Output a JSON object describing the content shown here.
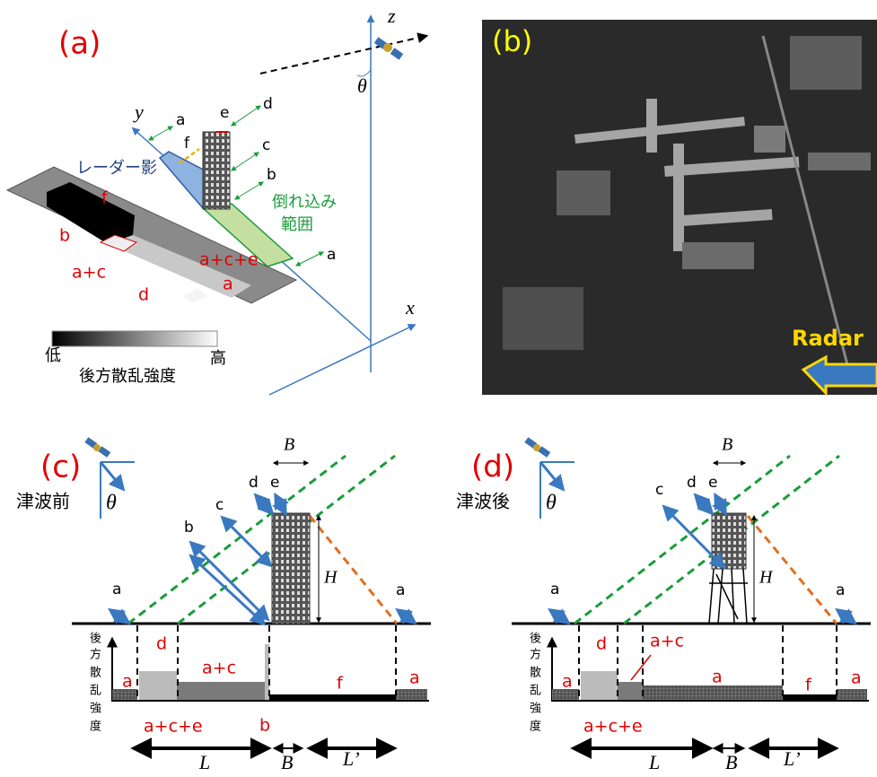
{
  "panel_a": {
    "label": "(a)",
    "axis_x": "x",
    "axis_y": "y",
    "axis_z": "z",
    "theta": "θ",
    "shadow_label": "レーダー影",
    "layover_label_1": "倒れ込み",
    "layover_label_2": "範囲",
    "paths": [
      "a",
      "e",
      "d",
      "f",
      "c",
      "b",
      "a"
    ],
    "image_labels": [
      "f",
      "b",
      "a+c",
      "a+c+e",
      "d",
      "a"
    ],
    "scale_low": "低",
    "scale_high": "高",
    "scale_caption": "後方散乱強度"
  },
  "panel_b": {
    "label": "(b)",
    "arrow_label": "Radar"
  },
  "panel_c": {
    "label": "(c)",
    "caption": "津波前",
    "theta": "θ",
    "rays": [
      "a",
      "b",
      "c",
      "d",
      "e",
      "a"
    ],
    "width_label": "B",
    "height_label": "H",
    "y_axis_label": [
      "後",
      "方",
      "散",
      "乱",
      "強",
      "度"
    ],
    "profile_labels": [
      "a",
      "d",
      "a+c",
      "f",
      "a",
      "a+c+e",
      "b"
    ],
    "bottom_labels": [
      "L",
      "B",
      "L’"
    ]
  },
  "panel_d": {
    "label": "(d)",
    "caption": "津波後",
    "theta": "θ",
    "rays": [
      "a",
      "c",
      "d",
      "e",
      "a"
    ],
    "width_label": "B",
    "height_label": "H",
    "y_axis_label": [
      "後",
      "方",
      "散",
      "乱",
      "強",
      "度"
    ],
    "profile_labels": [
      "a",
      "d",
      "a+c",
      "a",
      "f",
      "a",
      "a+c+e"
    ],
    "bottom_labels": [
      "L",
      "B",
      "L’"
    ]
  }
}
